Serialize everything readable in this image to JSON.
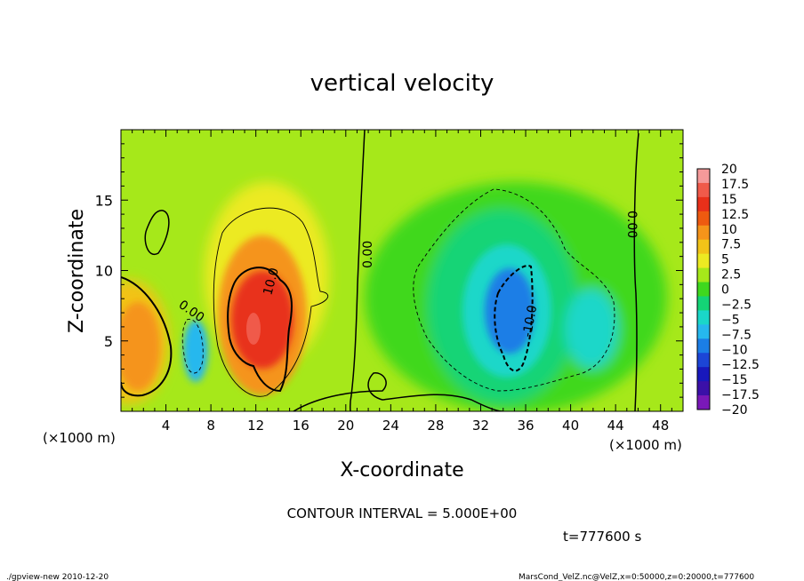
{
  "chart_data": {
    "type": "heatmap",
    "title": "vertical velocity",
    "xlabel": "X-coordinate",
    "ylabel": "Z-coordinate",
    "x_unit": "(×1000 m)",
    "y_unit": "(×1000 m)",
    "xlim": [
      0,
      50
    ],
    "ylim": [
      0,
      20
    ],
    "x_ticks": [
      4,
      8,
      12,
      16,
      20,
      24,
      28,
      32,
      36,
      40,
      44,
      48
    ],
    "y_ticks": [
      5,
      10,
      15
    ],
    "colorbar": {
      "levels": [
        "20",
        "17.5",
        "15",
        "12.5",
        "10",
        "7.5",
        "5",
        "2.5",
        "0",
        "-2.5",
        "-5",
        "-7.5",
        "-10",
        "-12.5",
        "-15",
        "-17.5",
        "-20"
      ],
      "colors": [
        "#f59a9a",
        "#f05a4a",
        "#e8301a",
        "#ee5a10",
        "#f5941a",
        "#f2c318",
        "#ecea22",
        "#a6e81a",
        "#3fd81e",
        "#14d476",
        "#1ad7c9",
        "#26b8ee",
        "#1b7ee6",
        "#1c45d6",
        "#1818bc",
        "#3b10a8",
        "#7a18b8"
      ]
    },
    "contour_interval": "CONTOUR INTERVAL = 5.000E+00",
    "contour_labels": [
      "0.00",
      "10.0",
      "-10.0",
      "0.00",
      "0.00"
    ],
    "features": [
      {
        "kind": "updraft",
        "x": 12.5,
        "z": 6.5,
        "peak": 17
      },
      {
        "kind": "updraft",
        "x": 2.5,
        "z": 5.0,
        "peak": 11
      },
      {
        "kind": "downdraft",
        "x": 34,
        "z": 6.5,
        "peak": -12
      },
      {
        "kind": "downdraft",
        "x": 6.5,
        "z": 4.5,
        "peak": -7
      }
    ],
    "time_label": "t=777600 s",
    "footer_left": "./gpview-new  2010-12-20",
    "footer_right": "MarsCond_VelZ.nc@VelZ,x=0:50000,z=0:20000,t=777600"
  }
}
